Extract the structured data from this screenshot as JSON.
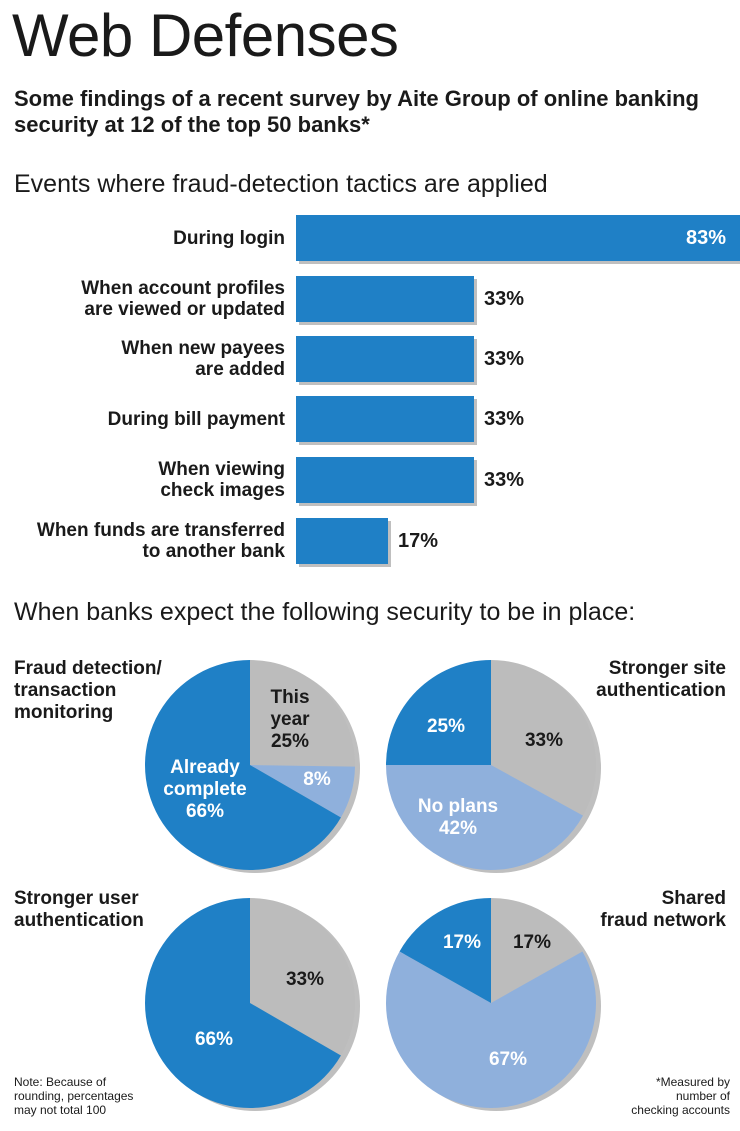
{
  "title": "Web Defenses",
  "subtitle": "Some findings of a recent survey by Aite Group of online banking security at 12 of the top 50 banks*",
  "colors": {
    "dark_blue": "#1f80c6",
    "light_blue": "#8fb0dc",
    "gray": "#bcbcbc",
    "shadow": "#bfbfbf"
  },
  "chart_data": [
    {
      "type": "bar",
      "title": "Events where fraud-detection tactics are applied",
      "categories": [
        "During login",
        "When account profiles are viewed or updated",
        "When new payees are added",
        "During bill payment",
        "When viewing check images",
        "When funds are transferred to another bank"
      ],
      "category_lines": [
        [
          "During login"
        ],
        [
          "When account profiles",
          "are viewed or updated"
        ],
        [
          "When new payees",
          "are added"
        ],
        [
          "During bill payment"
        ],
        [
          "When viewing",
          "check images"
        ],
        [
          "When funds are transferred",
          "to another bank"
        ]
      ],
      "values": [
        83,
        33,
        33,
        33,
        33,
        17
      ],
      "value_labels": [
        "83%",
        "33%",
        "33%",
        "33%",
        "33%",
        "17%"
      ],
      "xlim": [
        0,
        100
      ]
    },
    {
      "type": "pie",
      "section_title": "When banks expect the following security to be in place:",
      "title_lines": [
        "Fraud detection/",
        "transaction",
        "monitoring"
      ],
      "slices": [
        {
          "value": 25,
          "color": "gray",
          "label_lines": [
            "This",
            "year",
            "25%"
          ]
        },
        {
          "value": 8,
          "color": "light_blue",
          "label_lines": [
            "8%"
          ]
        },
        {
          "value": 66,
          "color": "dark_blue",
          "label_lines": [
            "Already",
            "complete",
            "66%"
          ]
        }
      ]
    },
    {
      "type": "pie",
      "title_lines": [
        "Stronger site",
        "authentication"
      ],
      "slices": [
        {
          "value": 33,
          "color": "gray",
          "label_lines": [
            "33%"
          ]
        },
        {
          "value": 42,
          "color": "light_blue",
          "label_lines": [
            "No plans",
            "42%"
          ]
        },
        {
          "value": 25,
          "color": "dark_blue",
          "label_lines": [
            "25%"
          ]
        }
      ]
    },
    {
      "type": "pie",
      "title_lines": [
        "Stronger user",
        "authentication"
      ],
      "slices": [
        {
          "value": 33,
          "color": "gray",
          "label_lines": [
            "33%"
          ]
        },
        {
          "value": 66,
          "color": "dark_blue",
          "label_lines": [
            "66%"
          ]
        }
      ]
    },
    {
      "type": "pie",
      "title_lines": [
        "Shared",
        "fraud network"
      ],
      "slices": [
        {
          "value": 17,
          "color": "gray",
          "label_lines": [
            "17%"
          ]
        },
        {
          "value": 67,
          "color": "light_blue",
          "label_lines": [
            "67%"
          ]
        },
        {
          "value": 17,
          "color": "dark_blue",
          "label_lines": [
            "17%"
          ]
        }
      ]
    }
  ],
  "notes": {
    "left": [
      "Note: Because of",
      "rounding, percentages",
      "may not total 100"
    ],
    "right": [
      "*Measured by",
      "number of",
      "checking accounts"
    ]
  }
}
